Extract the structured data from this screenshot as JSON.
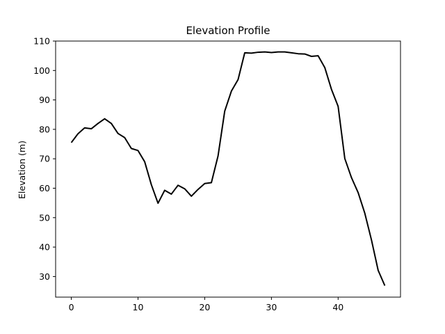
{
  "chart_data": {
    "type": "line",
    "title": "Elevation Profile",
    "xlabel": "",
    "ylabel": "Elevation (m)",
    "xlim": [
      -2.35,
      49.35
    ],
    "ylim": [
      23.0,
      110.0
    ],
    "xticks": [
      0,
      10,
      20,
      30,
      40
    ],
    "yticks": [
      30,
      40,
      50,
      60,
      70,
      80,
      90,
      100,
      110
    ],
    "grid": false,
    "line_color": "#000000",
    "series": [
      {
        "x": [
          0,
          1,
          2,
          3,
          4,
          5,
          6,
          7,
          8,
          9,
          10,
          11,
          12,
          13,
          14,
          15,
          16,
          17,
          18,
          19,
          20,
          21,
          22,
          23,
          24,
          25,
          26,
          27,
          28,
          29,
          30,
          31,
          32,
          33,
          34,
          35,
          36,
          37,
          38,
          39,
          40,
          41,
          42,
          43,
          44,
          45,
          46,
          47
        ],
        "values": [
          75.5,
          78.5,
          80.5,
          80.2,
          82.0,
          83.6,
          82.0,
          78.6,
          77.2,
          73.5,
          72.8,
          69.0,
          61.2,
          54.9,
          59.3,
          58.0,
          61.0,
          59.8,
          57.3,
          59.6,
          61.6,
          61.9,
          71.0,
          86.2,
          93.0,
          96.9,
          106.0,
          105.9,
          106.2,
          106.3,
          106.1,
          106.3,
          106.3,
          106.0,
          105.7,
          105.6,
          104.8,
          105.0,
          101.0,
          93.6,
          87.8,
          70.1,
          63.6,
          58.5,
          51.5,
          42.4,
          32.1,
          26.9
        ]
      }
    ]
  }
}
